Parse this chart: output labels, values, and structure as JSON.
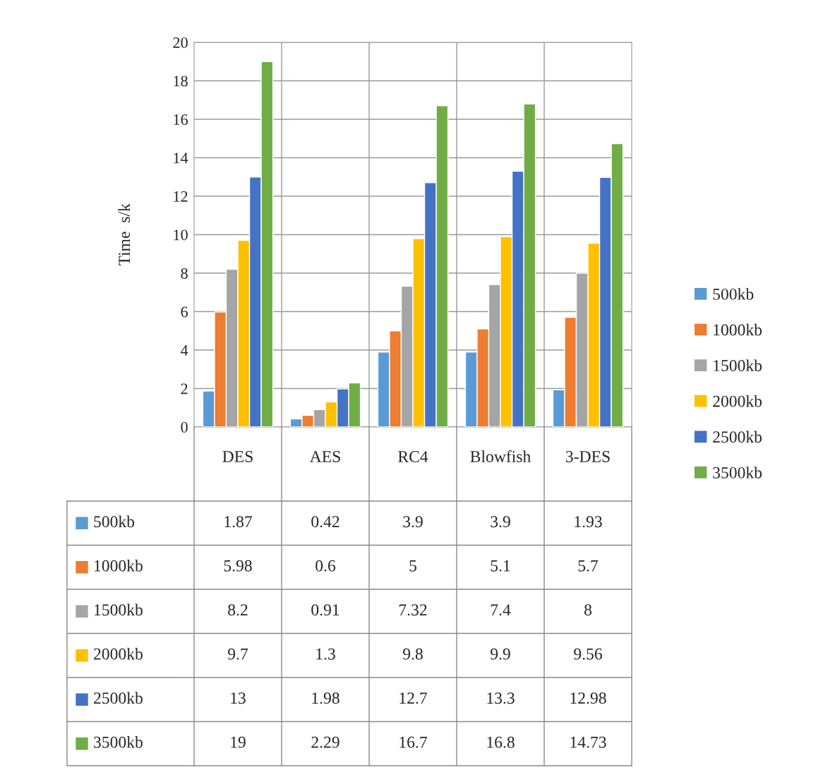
{
  "chart_data": {
    "type": "bar",
    "ylabel": "Time  s/k",
    "categories": [
      "DES",
      "AES",
      "RC4",
      "Blowfish",
      "3-DES"
    ],
    "series": [
      {
        "name": "500kb",
        "color": "#5b9bd5",
        "values": [
          1.87,
          0.42,
          3.9,
          3.9,
          1.93
        ]
      },
      {
        "name": "1000kb",
        "color": "#ed7d31",
        "values": [
          5.98,
          0.6,
          5,
          5.1,
          5.7
        ]
      },
      {
        "name": "1500kb",
        "color": "#a5a5a5",
        "values": [
          8.2,
          0.91,
          7.32,
          7.4,
          8
        ]
      },
      {
        "name": "2000kb",
        "color": "#ffc000",
        "values": [
          9.7,
          1.3,
          9.8,
          9.9,
          9.56
        ]
      },
      {
        "name": "2500kb",
        "color": "#4472c4",
        "values": [
          13,
          1.98,
          12.7,
          13.3,
          12.98
        ]
      },
      {
        "name": "3500kb",
        "color": "#70ad47",
        "values": [
          19,
          2.29,
          16.7,
          16.8,
          14.73
        ]
      }
    ],
    "ylim": [
      0,
      20
    ],
    "yticks": [
      0,
      2,
      4,
      6,
      8,
      10,
      12,
      14,
      16,
      18,
      20
    ],
    "grid": "y",
    "legend": "right",
    "data_labels": true
  }
}
